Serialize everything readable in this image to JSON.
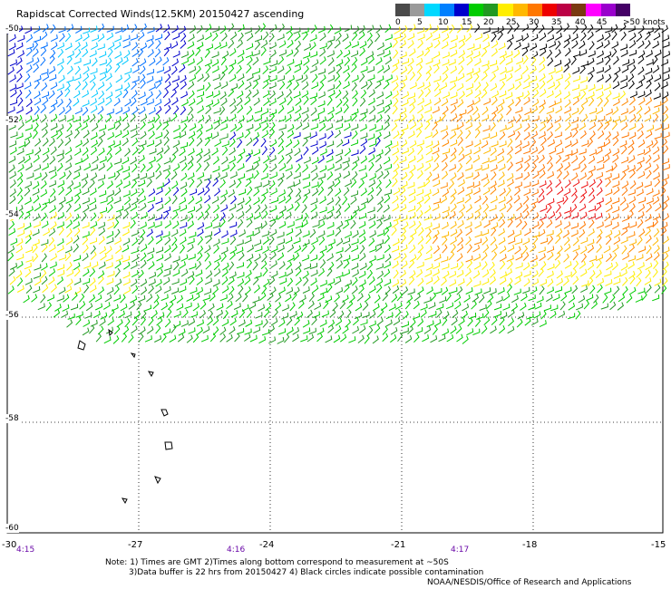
{
  "title": "Rapidscat Corrected Winds(12.5KM) 20150427 ascending",
  "legend": {
    "labels": [
      "0",
      "5",
      "10",
      "15",
      "20",
      "25",
      "30",
      "35",
      "40",
      "45",
      ">50 knots"
    ],
    "colors": [
      "#4a4a4a",
      "#9a9a9a",
      "#00d8ff",
      "#0080ff",
      "#0000cc",
      "#00cc00",
      "#229922",
      "#ffee00",
      "#ffb800",
      "#ff7700",
      "#ee0000",
      "#bb0044",
      "#7a3a10",
      "#ff00ff",
      "#9900cc",
      "#440066"
    ]
  },
  "lat_labels": [
    "-50",
    "-52",
    "-54",
    "-56",
    "-58",
    "-60"
  ],
  "lon_labels": [
    "-30",
    "-27",
    "-24",
    "-21",
    "-18",
    "-15"
  ],
  "times": [
    "4:15",
    "4:16",
    "4:17"
  ],
  "notes": [
    "Note: 1) Times are GMT 2)Times along bottom correspond to measurement at ~50S",
    "3)Data buffer is 22 hrs from 20150427 4) Black circles indicate possible contamination",
    "NOAA/NESDIS/Office of Research and Applications"
  ],
  "chart_data": {
    "type": "map",
    "title": "Rapidscat Corrected Winds(12.5KM) 20150427 ascending",
    "x_axis": {
      "label": "",
      "range": [
        -30,
        -15
      ],
      "ticks": [
        -30,
        -27,
        -24,
        -21,
        -18,
        -15
      ]
    },
    "y_axis": {
      "label": "",
      "range": [
        -60,
        -50
      ],
      "ticks": [
        -50,
        -52,
        -54,
        -56,
        -58,
        -60
      ]
    },
    "grid": true,
    "legend": {
      "title": "knots",
      "bins": [
        0,
        5,
        10,
        15,
        20,
        25,
        30,
        35,
        40,
        45,
        50
      ],
      "placement": "top-right"
    },
    "wind_regions": [
      {
        "region": "northwest",
        "speed_knots": [
          8,
          14
        ]
      },
      {
        "region": "central band",
        "speed_knots": [
          15,
          20
        ]
      },
      {
        "region": "east",
        "speed_knots": [
          20,
          30
        ]
      },
      {
        "region": "southeast core",
        "speed_knots": [
          30,
          40
        ]
      },
      {
        "region": "northeast corner",
        "speed_knots": [
          0,
          5
        ]
      }
    ]
  }
}
